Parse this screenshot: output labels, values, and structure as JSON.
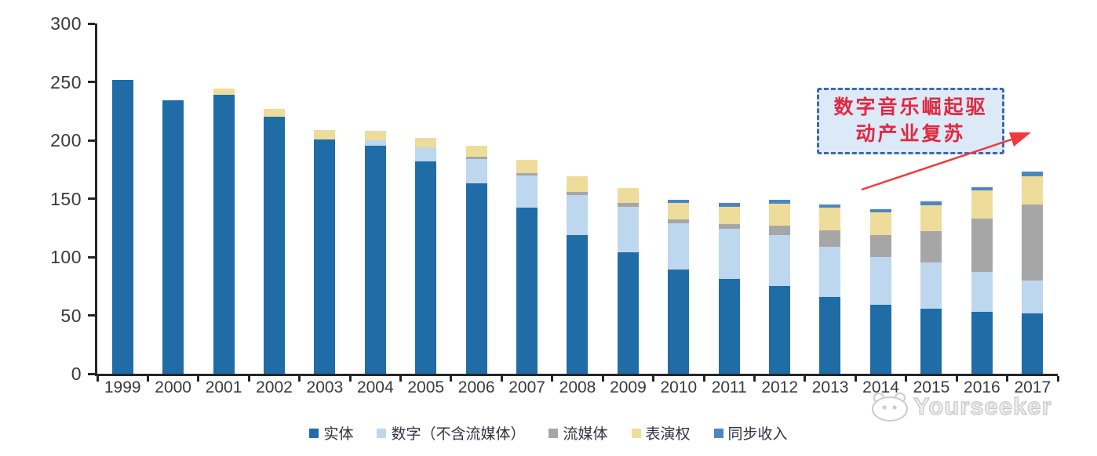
{
  "chart_data": {
    "type": "bar",
    "stacked": true,
    "title": "",
    "xlabel": "",
    "ylabel": "",
    "categories": [
      "1999",
      "2000",
      "2001",
      "2002",
      "2003",
      "2004",
      "2005",
      "2006",
      "2007",
      "2008",
      "2009",
      "2010",
      "2011",
      "2012",
      "2013",
      "2014",
      "2015",
      "2016",
      "2017"
    ],
    "series": [
      {
        "name": "实体",
        "color": "#1f6ca7",
        "values": [
          252,
          234,
          239,
          220,
          201,
          195,
          182,
          163,
          142,
          119,
          104,
          89,
          81,
          75,
          66,
          59,
          56,
          53,
          52
        ]
      },
      {
        "name": "数字（不含流媒体）",
        "color": "#bdd7ee",
        "values": [
          0,
          0,
          0,
          0,
          0,
          5,
          12,
          21,
          28,
          34,
          39,
          40,
          43,
          44,
          43,
          41,
          39,
          34,
          28
        ]
      },
      {
        "name": "流媒体",
        "color": "#a6a6a6",
        "values": [
          0,
          0,
          0,
          0,
          0,
          0,
          0,
          2,
          2,
          3,
          3,
          3,
          4,
          8,
          14,
          19,
          27,
          46,
          65
        ]
      },
      {
        "name": "表演权",
        "color": "#eedc9b",
        "values": [
          0,
          0,
          5,
          7,
          8,
          8,
          8,
          9,
          11,
          13,
          13,
          14,
          15,
          19,
          19,
          19,
          22,
          24,
          24
        ]
      },
      {
        "name": "同步收入",
        "color": "#4b86c2",
        "values": [
          0,
          0,
          0,
          0,
          0,
          0,
          0,
          0,
          0,
          0,
          0,
          3,
          3,
          3,
          3,
          3,
          4,
          3,
          4
        ]
      }
    ],
    "ylim": [
      0,
      300
    ],
    "yticks": [
      0,
      50,
      100,
      150,
      200,
      250,
      300
    ],
    "grid": false,
    "legend_position": "bottom"
  },
  "annotation": {
    "line1": "数字音乐崛起驱",
    "line2": "动产业复苏",
    "text_color": "#e02940",
    "border_color": "#4169a8",
    "fill_color": "#dce9f7",
    "arrow_color": "#ee3a3e"
  },
  "watermark": {
    "text": "Yourseeker"
  },
  "axis": {
    "line_color": "#262626",
    "label_color": "#3a3a3a"
  }
}
